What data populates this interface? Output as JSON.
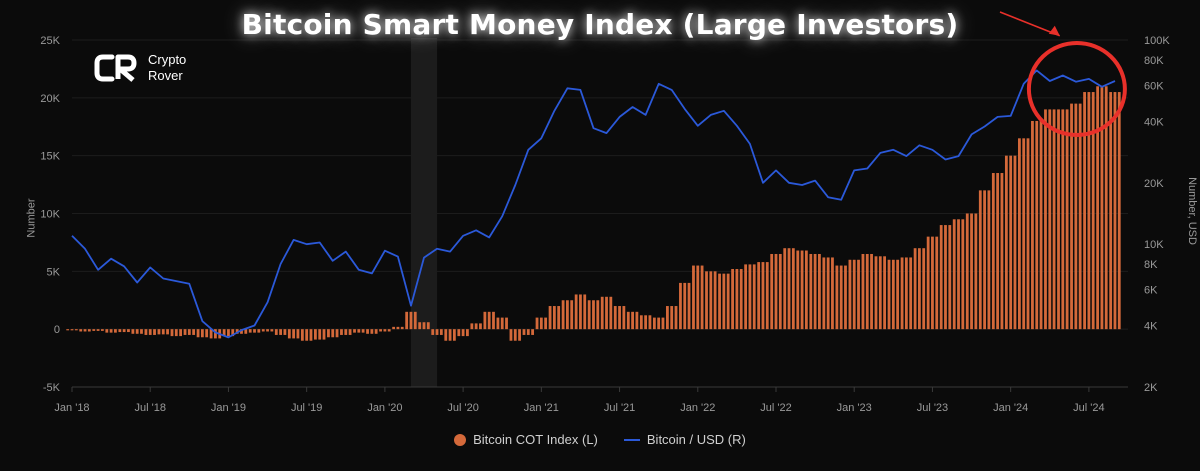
{
  "brand": {
    "name_line1": "Crypto",
    "name_line2": "Rover",
    "logo_glyph": "CR"
  },
  "chart_data": {
    "type": "bar+line",
    "title": "Bitcoin Smart Money Index (Large Investors)",
    "ylabel_left": "Number",
    "ylabel_right": "Number, USD",
    "xlabel": "",
    "x_tick_labels": [
      "Jan '18",
      "Jul '18",
      "Jan '19",
      "Jul '19",
      "Jan '20",
      "Jul '20",
      "Jan '21",
      "Jul '21",
      "Jan '22",
      "Jul '22",
      "Jan '23",
      "Jul '23",
      "Jan '24",
      "Jul '24"
    ],
    "x_range": [
      "2018-01",
      "2024-10"
    ],
    "y_left": {
      "range": [
        -5000,
        25000
      ],
      "ticks": [
        -5000,
        0,
        5000,
        10000,
        15000,
        20000,
        25000
      ],
      "tick_labels": [
        "-5K",
        "0",
        "5K",
        "10K",
        "15K",
        "20K",
        "25K"
      ]
    },
    "y_right": {
      "scale": "log",
      "range": [
        2000,
        100000
      ],
      "ticks": [
        2000,
        4000,
        6000,
        8000,
        10000,
        20000,
        40000,
        60000,
        80000,
        100000
      ],
      "tick_labels": [
        "2K",
        "4K",
        "6K",
        "8K",
        "10K",
        "20K",
        "40K",
        "60K",
        "80K",
        "100K"
      ]
    },
    "highlight_band": {
      "from": "2020-03",
      "to": "2020-05"
    },
    "legend_position": "bottom-center",
    "series": [
      {
        "name": "Bitcoin COT Index (L)",
        "type": "bar",
        "axis": "left",
        "color": "#d4693a",
        "points": [
          [
            "2018-01",
            -100
          ],
          [
            "2018-02",
            -200
          ],
          [
            "2018-03",
            -150
          ],
          [
            "2018-04",
            -300
          ],
          [
            "2018-05",
            -250
          ],
          [
            "2018-06",
            -400
          ],
          [
            "2018-07",
            -500
          ],
          [
            "2018-08",
            -450
          ],
          [
            "2018-09",
            -600
          ],
          [
            "2018-10",
            -500
          ],
          [
            "2018-11",
            -700
          ],
          [
            "2018-12",
            -800
          ],
          [
            "2019-01",
            -600
          ],
          [
            "2019-02",
            -400
          ],
          [
            "2019-03",
            -300
          ],
          [
            "2019-04",
            -200
          ],
          [
            "2019-05",
            -500
          ],
          [
            "2019-06",
            -800
          ],
          [
            "2019-07",
            -1000
          ],
          [
            "2019-08",
            -900
          ],
          [
            "2019-09",
            -700
          ],
          [
            "2019-10",
            -500
          ],
          [
            "2019-11",
            -300
          ],
          [
            "2019-12",
            -400
          ],
          [
            "2020-01",
            -200
          ],
          [
            "2020-02",
            200
          ],
          [
            "2020-03",
            1500
          ],
          [
            "2020-04",
            600
          ],
          [
            "2020-05",
            -500
          ],
          [
            "2020-06",
            -1000
          ],
          [
            "2020-07",
            -600
          ],
          [
            "2020-08",
            500
          ],
          [
            "2020-09",
            1500
          ],
          [
            "2020-10",
            1000
          ],
          [
            "2020-11",
            -1000
          ],
          [
            "2020-12",
            -500
          ],
          [
            "2021-01",
            1000
          ],
          [
            "2021-02",
            2000
          ],
          [
            "2021-03",
            2500
          ],
          [
            "2021-04",
            3000
          ],
          [
            "2021-05",
            2500
          ],
          [
            "2021-06",
            2800
          ],
          [
            "2021-07",
            2000
          ],
          [
            "2021-08",
            1500
          ],
          [
            "2021-09",
            1200
          ],
          [
            "2021-10",
            1000
          ],
          [
            "2021-11",
            2000
          ],
          [
            "2021-12",
            4000
          ],
          [
            "2022-01",
            5500
          ],
          [
            "2022-02",
            5000
          ],
          [
            "2022-03",
            4800
          ],
          [
            "2022-04",
            5200
          ],
          [
            "2022-05",
            5600
          ],
          [
            "2022-06",
            5800
          ],
          [
            "2022-07",
            6500
          ],
          [
            "2022-08",
            7000
          ],
          [
            "2022-09",
            6800
          ],
          [
            "2022-10",
            6500
          ],
          [
            "2022-11",
            6200
          ],
          [
            "2022-12",
            5500
          ],
          [
            "2023-01",
            6000
          ],
          [
            "2023-02",
            6500
          ],
          [
            "2023-03",
            6300
          ],
          [
            "2023-04",
            6000
          ],
          [
            "2023-05",
            6200
          ],
          [
            "2023-06",
            7000
          ],
          [
            "2023-07",
            8000
          ],
          [
            "2023-08",
            9000
          ],
          [
            "2023-09",
            9500
          ],
          [
            "2023-10",
            10000
          ],
          [
            "2023-11",
            12000
          ],
          [
            "2023-12",
            13500
          ],
          [
            "2024-01",
            15000
          ],
          [
            "2024-02",
            16500
          ],
          [
            "2024-03",
            18000
          ],
          [
            "2024-04",
            19000
          ],
          [
            "2024-05",
            19000
          ],
          [
            "2024-06",
            19500
          ],
          [
            "2024-07",
            20500
          ],
          [
            "2024-08",
            21000
          ],
          [
            "2024-09",
            20500
          ]
        ]
      },
      {
        "name": "Bitcoin / USD (R)",
        "type": "line",
        "axis": "right",
        "color": "#2b59d9",
        "points": [
          [
            "2018-01",
            11000
          ],
          [
            "2018-02",
            9500
          ],
          [
            "2018-03",
            7500
          ],
          [
            "2018-04",
            8500
          ],
          [
            "2018-05",
            7800
          ],
          [
            "2018-06",
            6500
          ],
          [
            "2018-07",
            7700
          ],
          [
            "2018-08",
            6800
          ],
          [
            "2018-09",
            6600
          ],
          [
            "2018-10",
            6400
          ],
          [
            "2018-11",
            4200
          ],
          [
            "2018-12",
            3700
          ],
          [
            "2019-01",
            3500
          ],
          [
            "2019-02",
            3800
          ],
          [
            "2019-03",
            4000
          ],
          [
            "2019-04",
            5200
          ],
          [
            "2019-05",
            8000
          ],
          [
            "2019-06",
            10500
          ],
          [
            "2019-07",
            10000
          ],
          [
            "2019-08",
            10200
          ],
          [
            "2019-09",
            8300
          ],
          [
            "2019-10",
            9200
          ],
          [
            "2019-11",
            7500
          ],
          [
            "2019-12",
            7200
          ],
          [
            "2020-01",
            9300
          ],
          [
            "2020-02",
            8700
          ],
          [
            "2020-03",
            5000
          ],
          [
            "2020-04",
            8600
          ],
          [
            "2020-05",
            9500
          ],
          [
            "2020-06",
            9200
          ],
          [
            "2020-07",
            11000
          ],
          [
            "2020-08",
            11700
          ],
          [
            "2020-09",
            10800
          ],
          [
            "2020-10",
            13700
          ],
          [
            "2020-11",
            19500
          ],
          [
            "2020-12",
            29000
          ],
          [
            "2021-01",
            33000
          ],
          [
            "2021-02",
            45000
          ],
          [
            "2021-03",
            58000
          ],
          [
            "2021-04",
            57000
          ],
          [
            "2021-05",
            37000
          ],
          [
            "2021-06",
            35000
          ],
          [
            "2021-07",
            42000
          ],
          [
            "2021-08",
            47000
          ],
          [
            "2021-09",
            43000
          ],
          [
            "2021-10",
            61000
          ],
          [
            "2021-11",
            57000
          ],
          [
            "2021-12",
            46000
          ],
          [
            "2022-01",
            38000
          ],
          [
            "2022-02",
            43000
          ],
          [
            "2022-03",
            45000
          ],
          [
            "2022-04",
            38000
          ],
          [
            "2022-05",
            31000
          ],
          [
            "2022-06",
            20000
          ],
          [
            "2022-07",
            23000
          ],
          [
            "2022-08",
            20000
          ],
          [
            "2022-09",
            19500
          ],
          [
            "2022-10",
            20500
          ],
          [
            "2022-11",
            17000
          ],
          [
            "2022-12",
            16500
          ],
          [
            "2023-01",
            23000
          ],
          [
            "2023-02",
            23500
          ],
          [
            "2023-03",
            28000
          ],
          [
            "2023-04",
            29000
          ],
          [
            "2023-05",
            27000
          ],
          [
            "2023-06",
            30500
          ],
          [
            "2023-07",
            29000
          ],
          [
            "2023-08",
            26000
          ],
          [
            "2023-09",
            27000
          ],
          [
            "2023-10",
            34500
          ],
          [
            "2023-11",
            37700
          ],
          [
            "2023-12",
            42000
          ],
          [
            "2024-01",
            42500
          ],
          [
            "2024-02",
            61000
          ],
          [
            "2024-03",
            71000
          ],
          [
            "2024-04",
            63000
          ],
          [
            "2024-05",
            67000
          ],
          [
            "2024-06",
            62500
          ],
          [
            "2024-07",
            64500
          ],
          [
            "2024-08",
            59000
          ],
          [
            "2024-09",
            63000
          ]
        ]
      }
    ],
    "annotations": [
      {
        "kind": "circle",
        "color": "#e8302a",
        "center": [
          "2024-07",
          55000
        ]
      },
      {
        "kind": "arrow",
        "color": "#e8302a",
        "to": [
          "2024-04",
          80000
        ]
      }
    ]
  }
}
